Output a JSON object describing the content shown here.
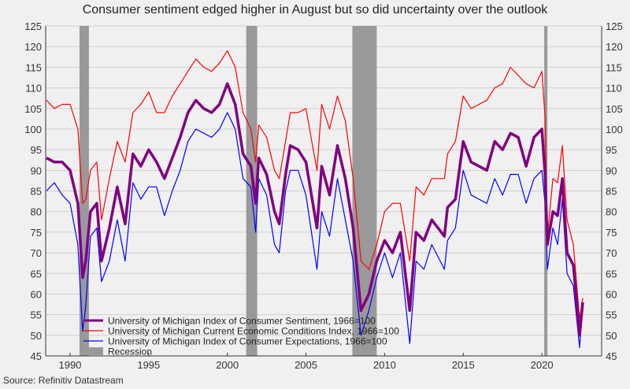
{
  "chart_data": {
    "type": "line",
    "title": "Consumer sentiment edged higher in August but so did uncertainty over the outlook",
    "source": "Source: Refinitiv Datastream",
    "xlim": [
      1988.45,
      2023.8
    ],
    "ylim": [
      45,
      125
    ],
    "yticks": [
      45,
      50,
      55,
      60,
      65,
      70,
      75,
      80,
      85,
      90,
      95,
      100,
      105,
      110,
      115,
      120,
      125
    ],
    "xticks": [
      1990,
      1995,
      2000,
      2005,
      2010,
      2015,
      2020
    ],
    "grid": true,
    "legend_position": "bottom-left",
    "recession_label": "Recession",
    "recession_color": "#999999",
    "recessions": [
      [
        1990.6,
        1991.2
      ],
      [
        2001.2,
        2001.9
      ],
      [
        2007.95,
        2009.5
      ],
      [
        2020.15,
        2020.35
      ]
    ],
    "x": [
      1988.5,
      1989,
      1989.5,
      1990,
      1990.5,
      1990.8,
      1991,
      1991.3,
      1991.7,
      1992,
      1992.5,
      1993,
      1993.5,
      1994,
      1994.5,
      1995,
      1995.5,
      1996,
      1996.5,
      1997,
      1997.5,
      1998,
      1998.5,
      1999,
      1999.5,
      2000,
      2000.5,
      2001,
      2001.5,
      2001.8,
      2002,
      2002.5,
      2003,
      2003.3,
      2003.7,
      2004,
      2004.5,
      2005,
      2005.7,
      2006,
      2006.5,
      2007,
      2007.5,
      2008,
      2008.5,
      2009,
      2009.5,
      2010,
      2010.5,
      2011,
      2011.6,
      2012,
      2012.5,
      2013,
      2013.8,
      2014,
      2014.5,
      2015,
      2015.5,
      2016,
      2016.5,
      2017,
      2017.5,
      2018,
      2018.5,
      2019,
      2019.5,
      2020,
      2020.2,
      2020.35,
      2020.7,
      2021,
      2021.3,
      2021.6,
      2022,
      2022.4,
      2022.6
    ],
    "series": [
      {
        "name": "University of Michigan Current Economic Conditions Index, 1966=100",
        "color": "#ff0000",
        "width": 1.2,
        "values": [
          107,
          105,
          106,
          106,
          100,
          82,
          83,
          90,
          92,
          78,
          88,
          97,
          92,
          104,
          106,
          109,
          104,
          104,
          108,
          111,
          114,
          117,
          115,
          114,
          116,
          119,
          115,
          104,
          100,
          92,
          101,
          98,
          90,
          88,
          97,
          104,
          104,
          105,
          90,
          106,
          100,
          108,
          102,
          88,
          68,
          66,
          72,
          80,
          82,
          82,
          68,
          86,
          84,
          88,
          88,
          94,
          97,
          108,
          105,
          106,
          107,
          110,
          111,
          115,
          113,
          111,
          110,
          114,
          103,
          74,
          88,
          87,
          96,
          78,
          72,
          54,
          59
        ]
      },
      {
        "name": "University of Michigan Index of Consumer Expectations, 1966=100",
        "color": "#0000ff",
        "width": 1.2,
        "values": [
          85,
          87,
          84,
          82,
          72,
          51,
          57,
          74,
          76,
          63,
          68,
          78,
          68,
          87,
          83,
          86,
          86,
          79,
          85,
          90,
          97,
          100,
          99,
          98,
          100,
          104,
          100,
          88,
          86,
          75,
          88,
          84,
          72,
          70,
          85,
          90,
          90,
          84,
          66,
          80,
          74,
          88,
          78,
          68,
          50,
          56,
          64,
          70,
          64,
          70,
          48,
          68,
          66,
          72,
          66,
          73,
          76,
          90,
          84,
          83,
          82,
          88,
          84,
          89,
          89,
          82,
          88,
          90,
          82,
          66,
          76,
          72,
          83,
          65,
          62,
          47,
          58
        ]
      },
      {
        "name": "University of Michigan Index of Consumer Sentiment, 1966=100",
        "color": "#800080",
        "width": 3.5,
        "values": [
          93,
          92,
          92,
          90,
          82,
          64,
          68,
          80,
          82,
          68,
          76,
          86,
          77,
          94,
          91,
          95,
          92,
          88,
          93,
          98,
          104,
          107,
          105,
          104,
          106,
          111,
          106,
          94,
          91,
          82,
          93,
          89,
          80,
          77,
          89,
          96,
          95,
          92,
          76,
          91,
          84,
          96,
          88,
          76,
          56,
          60,
          68,
          73,
          70,
          75,
          56,
          75,
          73,
          78,
          74,
          81,
          83,
          97,
          92,
          91,
          90,
          97,
          95,
          99,
          98,
          91,
          98,
          100,
          89,
          72,
          80,
          79,
          88,
          70,
          67,
          50,
          58
        ]
      }
    ],
    "legend_order": [
      2,
      0,
      1
    ]
  }
}
